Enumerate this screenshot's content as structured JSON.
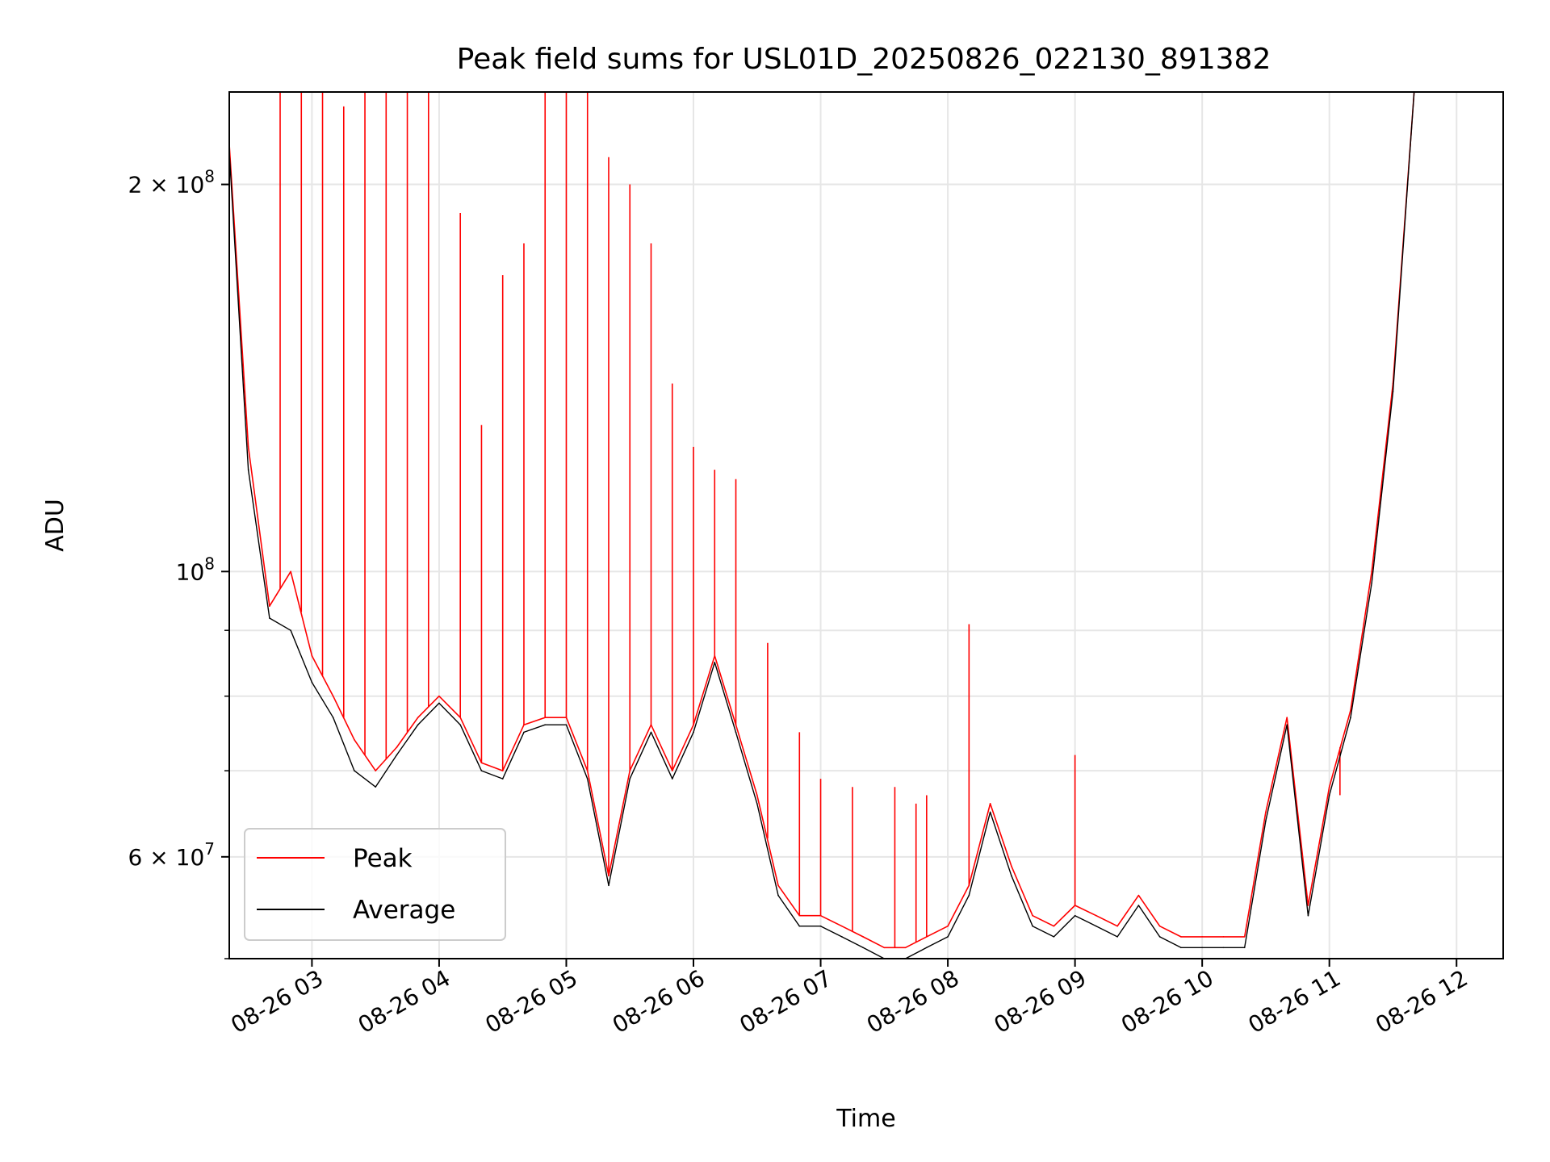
{
  "chart_data": {
    "type": "line",
    "title": "Peak field sums for USL01D_20250826_022130_891382",
    "xlabel": "Time",
    "ylabel": "ADU",
    "yscale": "log",
    "xlim": [
      "08-26 02:21",
      "08-26 12:22"
    ],
    "ylim": [
      50000000,
      236000000
    ],
    "grid": true,
    "legend_position": "lower-left",
    "x_tick_labels": [
      "08-26 03",
      "08-26 04",
      "08-26 05",
      "08-26 06",
      "08-26 07",
      "08-26 08",
      "08-26 09",
      "08-26 10",
      "08-26 11",
      "08-26 12"
    ],
    "y_tick_labels": [
      {
        "value": 200000000,
        "mantissa": "2",
        "exponent": "8"
      },
      {
        "value": 100000000,
        "mantissa": "",
        "exponent": "8"
      },
      {
        "value": 60000000,
        "mantissa": "6",
        "exponent": "7"
      }
    ],
    "series": [
      {
        "name": "Peak",
        "color": "#ff0000",
        "x": [
          "08-26 02:21",
          "08-26 02:30",
          "08-26 02:40",
          "08-26 02:50",
          "08-26 03:00",
          "08-26 03:10",
          "08-26 03:20",
          "08-26 03:30",
          "08-26 03:40",
          "08-26 03:50",
          "08-26 04:00",
          "08-26 04:10",
          "08-26 04:20",
          "08-26 04:30",
          "08-26 04:40",
          "08-26 04:50",
          "08-26 05:00",
          "08-26 05:10",
          "08-26 05:20",
          "08-26 05:30",
          "08-26 05:40",
          "08-26 05:50",
          "08-26 06:00",
          "08-26 06:10",
          "08-26 06:20",
          "08-26 06:30",
          "08-26 06:40",
          "08-26 06:50",
          "08-26 07:00",
          "08-26 07:10",
          "08-26 07:20",
          "08-26 07:30",
          "08-26 07:40",
          "08-26 07:50",
          "08-26 08:00",
          "08-26 08:10",
          "08-26 08:20",
          "08-26 08:30",
          "08-26 08:40",
          "08-26 08:50",
          "08-26 09:00",
          "08-26 09:10",
          "08-26 09:20",
          "08-26 09:30",
          "08-26 09:40",
          "08-26 09:50",
          "08-26 10:00",
          "08-26 10:10",
          "08-26 10:20",
          "08-26 10:30",
          "08-26 10:40",
          "08-26 10:50",
          "08-26 11:00",
          "08-26 11:10",
          "08-26 11:20",
          "08-26 11:30",
          "08-26 11:40",
          "08-26 11:50",
          "08-26 12:00",
          "08-26 12:10",
          "08-26 12:15"
        ],
        "values": [
          215000000,
          125000000,
          94000000,
          100000000,
          86000000,
          80000000,
          74000000,
          70000000,
          73000000,
          77000000,
          80000000,
          77000000,
          71000000,
          70000000,
          76000000,
          77000000,
          77000000,
          70000000,
          58000000,
          70000000,
          76000000,
          70000000,
          76000000,
          86000000,
          76000000,
          67000000,
          57000000,
          54000000,
          54000000,
          53000000,
          52000000,
          51000000,
          51000000,
          52000000,
          53000000,
          57000000,
          66000000,
          59000000,
          54000000,
          53000000,
          55000000,
          54000000,
          53000000,
          56000000,
          53000000,
          52000000,
          52000000,
          52000000,
          52000000,
          65000000,
          77000000,
          55000000,
          68000000,
          78000000,
          100000000,
          140000000,
          236000000,
          236000000,
          236000000,
          236000000,
          236000000
        ],
        "spikes": [
          {
            "x": "08-26 02:45",
            "y": 236000000
          },
          {
            "x": "08-26 02:55",
            "y": 236000000
          },
          {
            "x": "08-26 03:05",
            "y": 236000000
          },
          {
            "x": "08-26 03:15",
            "y": 230000000
          },
          {
            "x": "08-26 03:25",
            "y": 236000000
          },
          {
            "x": "08-26 03:35",
            "y": 236000000
          },
          {
            "x": "08-26 03:45",
            "y": 236000000
          },
          {
            "x": "08-26 03:55",
            "y": 236000000
          },
          {
            "x": "08-26 04:10",
            "y": 190000000
          },
          {
            "x": "08-26 04:20",
            "y": 130000000
          },
          {
            "x": "08-26 04:30",
            "y": 170000000
          },
          {
            "x": "08-26 04:40",
            "y": 180000000
          },
          {
            "x": "08-26 04:50",
            "y": 236000000
          },
          {
            "x": "08-26 05:00",
            "y": 236000000
          },
          {
            "x": "08-26 05:10",
            "y": 236000000
          },
          {
            "x": "08-26 05:20",
            "y": 210000000
          },
          {
            "x": "08-26 05:30",
            "y": 200000000
          },
          {
            "x": "08-26 05:40",
            "y": 180000000
          },
          {
            "x": "08-26 05:50",
            "y": 140000000
          },
          {
            "x": "08-26 06:00",
            "y": 125000000
          },
          {
            "x": "08-26 06:10",
            "y": 120000000
          },
          {
            "x": "08-26 06:20",
            "y": 118000000
          },
          {
            "x": "08-26 06:35",
            "y": 88000000
          },
          {
            "x": "08-26 06:50",
            "y": 75000000
          },
          {
            "x": "08-26 07:00",
            "y": 69000000
          },
          {
            "x": "08-26 07:15",
            "y": 68000000
          },
          {
            "x": "08-26 07:35",
            "y": 68000000
          },
          {
            "x": "08-26 07:45",
            "y": 66000000
          },
          {
            "x": "08-26 07:50",
            "y": 67000000
          },
          {
            "x": "08-26 08:10",
            "y": 91000000
          },
          {
            "x": "08-26 09:00",
            "y": 72000000
          },
          {
            "x": "08-26 11:05",
            "y": 67000000
          }
        ]
      },
      {
        "name": "Average",
        "color": "#000000",
        "x": [
          "08-26 02:21",
          "08-26 02:30",
          "08-26 02:40",
          "08-26 02:50",
          "08-26 03:00",
          "08-26 03:10",
          "08-26 03:20",
          "08-26 03:30",
          "08-26 03:40",
          "08-26 03:50",
          "08-26 04:00",
          "08-26 04:10",
          "08-26 04:20",
          "08-26 04:30",
          "08-26 04:40",
          "08-26 04:50",
          "08-26 05:00",
          "08-26 05:10",
          "08-26 05:20",
          "08-26 05:30",
          "08-26 05:40",
          "08-26 05:50",
          "08-26 06:00",
          "08-26 06:10",
          "08-26 06:20",
          "08-26 06:30",
          "08-26 06:40",
          "08-26 06:50",
          "08-26 07:00",
          "08-26 07:10",
          "08-26 07:20",
          "08-26 07:30",
          "08-26 07:40",
          "08-26 07:50",
          "08-26 08:00",
          "08-26 08:10",
          "08-26 08:20",
          "08-26 08:30",
          "08-26 08:40",
          "08-26 08:50",
          "08-26 09:00",
          "08-26 09:10",
          "08-26 09:20",
          "08-26 09:30",
          "08-26 09:40",
          "08-26 09:50",
          "08-26 10:00",
          "08-26 10:10",
          "08-26 10:20",
          "08-26 10:30",
          "08-26 10:40",
          "08-26 10:50",
          "08-26 11:00",
          "08-26 11:10",
          "08-26 11:20",
          "08-26 11:30",
          "08-26 11:40",
          "08-26 11:50",
          "08-26 12:00",
          "08-26 12:10",
          "08-26 12:15"
        ],
        "values": [
          212000000,
          120000000,
          92000000,
          90000000,
          82000000,
          77000000,
          70000000,
          68000000,
          72000000,
          76000000,
          79000000,
          76000000,
          70000000,
          69000000,
          75000000,
          76000000,
          76000000,
          69000000,
          57000000,
          69000000,
          75000000,
          69000000,
          75000000,
          85000000,
          75000000,
          66000000,
          56000000,
          53000000,
          53000000,
          52000000,
          51000000,
          50000000,
          50000000,
          51000000,
          52000000,
          56000000,
          65000000,
          58000000,
          53000000,
          52000000,
          54000000,
          53000000,
          52000000,
          55000000,
          52000000,
          51000000,
          51000000,
          51000000,
          51000000,
          64000000,
          76000000,
          54000000,
          67000000,
          77000000,
          98000000,
          138000000,
          236000000,
          236000000,
          236000000,
          236000000,
          236000000
        ]
      }
    ]
  }
}
